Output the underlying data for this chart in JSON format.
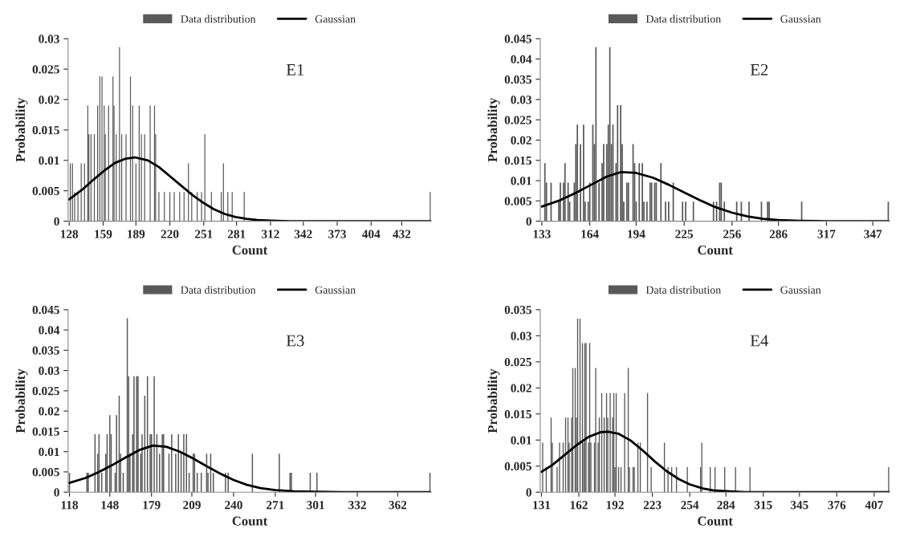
{
  "chart_data": [
    {
      "type": "bar",
      "xlabel": "Count",
      "ylabel": "Probability",
      "annotations": [
        "E1"
      ],
      "legend": "top",
      "xlim": [
        127,
        459
      ],
      "xticks": [
        128,
        159,
        189,
        220,
        251,
        281,
        312,
        342,
        373,
        404,
        432
      ],
      "ylim": [
        0,
        0.03
      ],
      "yticks": [
        0,
        0.005,
        0.01,
        0.015,
        0.02,
        0.025,
        0.03
      ],
      "series": [
        {
          "name": "Data distribution",
          "type": "bar",
          "color": "#595959",
          "x": [
            129,
            131,
            133,
            136,
            139,
            142,
            145,
            146,
            148,
            151,
            154,
            156,
            158,
            160,
            161,
            164,
            168,
            169,
            171,
            174,
            176,
            180,
            184,
            186,
            189,
            192,
            194,
            197,
            202,
            206,
            207,
            210,
            215,
            220,
            224,
            229,
            233,
            237,
            240,
            245,
            249,
            252,
            258,
            267,
            269,
            273,
            277,
            288,
            458
          ],
          "values": [
            0.0095,
            0.0095,
            0.0048,
            0.0048,
            0.0095,
            0.0095,
            0.019,
            0.0143,
            0.0143,
            0.0143,
            0.019,
            0.0238,
            0.0238,
            0.019,
            0.0143,
            0.019,
            0.0238,
            0.019,
            0.0143,
            0.0286,
            0.0143,
            0.0143,
            0.0238,
            0.019,
            0.0095,
            0.019,
            0.0143,
            0.0143,
            0.019,
            0.019,
            0.0143,
            0.0048,
            0.0048,
            0.0048,
            0.0048,
            0.0048,
            0.0048,
            0.0095,
            0.0048,
            0.0048,
            0.0048,
            0.0143,
            0.0048,
            0.0048,
            0.0095,
            0.0048,
            0.0048,
            0.0048,
            0.0048
          ]
        },
        {
          "name": "Gaussian",
          "type": "line",
          "color": "#000000",
          "x": [
            128,
            140,
            150,
            160,
            170,
            180,
            188,
            200,
            210,
            220,
            230,
            240,
            250,
            260,
            270,
            280,
            290,
            300,
            312,
            330,
            458
          ],
          "values": [
            0.0036,
            0.0052,
            0.0068,
            0.0083,
            0.0096,
            0.0103,
            0.0105,
            0.01,
            0.0089,
            0.0074,
            0.0059,
            0.0044,
            0.0031,
            0.002,
            0.0012,
            0.0007,
            0.0004,
            0.0002,
            0.0001,
            0,
            0
          ]
        }
      ]
    },
    {
      "type": "bar",
      "xlabel": "Count",
      "ylabel": "Probability",
      "annotations": [
        "E2"
      ],
      "legend": "top",
      "xlim": [
        132,
        358
      ],
      "xticks": [
        133,
        164,
        194,
        225,
        256,
        286,
        317,
        347
      ],
      "ylim": [
        0,
        0.045
      ],
      "yticks": [
        0,
        0.005,
        0.01,
        0.015,
        0.02,
        0.025,
        0.03,
        0.035,
        0.04,
        0.045
      ],
      "series": [
        {
          "name": "Data distribution",
          "type": "bar",
          "color": "#595959",
          "x": [
            135,
            136,
            139,
            144,
            145,
            147,
            148,
            150,
            151,
            154,
            155,
            156,
            158,
            160,
            161,
            163,
            164,
            166,
            167,
            168,
            170,
            172,
            173,
            175,
            176,
            177,
            178,
            179,
            181,
            182,
            184,
            185,
            186,
            188,
            189,
            192,
            193,
            194,
            196,
            198,
            199,
            201,
            203,
            204,
            206,
            207,
            210,
            213,
            215,
            218,
            224,
            226,
            231,
            244,
            246,
            248,
            249,
            251,
            259,
            262,
            267,
            275,
            279,
            280,
            301,
            357
          ],
          "values": [
            0.0143,
            0.0095,
            0.0095,
            0.0048,
            0.0095,
            0.0095,
            0.0143,
            0.0095,
            0.0048,
            0.0095,
            0.019,
            0.0238,
            0.019,
            0.0238,
            0.0048,
            0.0048,
            0.0095,
            0.0238,
            0.019,
            0.0429,
            0.0095,
            0.0143,
            0.019,
            0.019,
            0.0238,
            0.0429,
            0.019,
            0.0238,
            0.0143,
            0.0286,
            0.0286,
            0.019,
            0.0048,
            0.0095,
            0.0095,
            0.019,
            0.0143,
            0.0048,
            0.0143,
            0.0143,
            0.0048,
            0.0048,
            0.0095,
            0.0095,
            0.0095,
            0.0095,
            0.0143,
            0.0048,
            0.0048,
            0.0095,
            0.0048,
            0.0048,
            0.0048,
            0.0048,
            0.0048,
            0.0095,
            0.0095,
            0.0048,
            0.0048,
            0.0048,
            0.0048,
            0.0048,
            0.0048,
            0.0048,
            0.0048,
            0.0048
          ]
        },
        {
          "name": "Gaussian",
          "type": "line",
          "color": "#000000",
          "x": [
            133,
            145,
            155,
            165,
            175,
            184,
            194,
            205,
            215,
            225,
            235,
            245,
            256,
            266,
            276,
            286,
            300,
            317,
            357
          ],
          "values": [
            0.0036,
            0.0052,
            0.007,
            0.009,
            0.011,
            0.0121,
            0.0119,
            0.0107,
            0.009,
            0.0071,
            0.0052,
            0.0035,
            0.0021,
            0.0012,
            0.0006,
            0.0003,
            0.0001,
            0,
            0
          ]
        }
      ]
    },
    {
      "type": "bar",
      "xlabel": "Count",
      "ylabel": "Probability",
      "annotations": [
        "E3"
      ],
      "legend": "top",
      "xlim": [
        117,
        387
      ],
      "xticks": [
        118,
        148,
        179,
        209,
        240,
        271,
        301,
        332,
        362
      ],
      "ylim": [
        0,
        0.045
      ],
      "yticks": [
        0,
        0.005,
        0.01,
        0.015,
        0.02,
        0.025,
        0.03,
        0.035,
        0.04,
        0.045
      ],
      "series": [
        {
          "name": "Data distribution",
          "type": "bar",
          "color": "#595959",
          "x": [
            118,
            131,
            132,
            137,
            139,
            140,
            142,
            145,
            146,
            148,
            149,
            152,
            153,
            155,
            156,
            158,
            161,
            162,
            163,
            165,
            166,
            168,
            169,
            171,
            172,
            174,
            176,
            178,
            179,
            181,
            183,
            185,
            187,
            188,
            192,
            194,
            197,
            199,
            201,
            203,
            205,
            207,
            210,
            211,
            213,
            216,
            220,
            221,
            223,
            225,
            234,
            236,
            254,
            274,
            282,
            283,
            297,
            302,
            386
          ],
          "values": [
            0.0048,
            0.0048,
            0.0048,
            0.0143,
            0.0095,
            0.0143,
            0.0048,
            0.0095,
            0.0143,
            0.019,
            0.0143,
            0.0048,
            0.019,
            0.0238,
            0.0095,
            0.0048,
            0.0429,
            0.0286,
            0.0095,
            0.0143,
            0.0286,
            0.0286,
            0.0286,
            0.0095,
            0.0143,
            0.0238,
            0.0286,
            0.0143,
            0.0143,
            0.0286,
            0.0143,
            0.0095,
            0.0143,
            0.0143,
            0.0095,
            0.0143,
            0.0095,
            0.0143,
            0.0095,
            0.0143,
            0.0143,
            0.0048,
            0.0095,
            0.0095,
            0.0048,
            0.0048,
            0.0095,
            0.0048,
            0.0095,
            0.0048,
            0.0048,
            0.0048,
            0.0095,
            0.0095,
            0.0048,
            0.0048,
            0.0048,
            0.0048,
            0.0048
          ]
        },
        {
          "name": "Gaussian",
          "type": "line",
          "color": "#000000",
          "x": [
            118,
            130,
            140,
            150,
            160,
            170,
            180,
            190,
            200,
            210,
            220,
            230,
            240,
            250,
            260,
            271,
            285,
            301,
            320,
            386
          ],
          "values": [
            0.0023,
            0.0035,
            0.005,
            0.0067,
            0.0086,
            0.0104,
            0.0115,
            0.0112,
            0.01,
            0.0083,
            0.0064,
            0.0046,
            0.003,
            0.0018,
            0.001,
            0.0005,
            0.0002,
            0.0001,
            0,
            0
          ]
        }
      ]
    },
    {
      "type": "bar",
      "xlabel": "Count",
      "ylabel": "Probability",
      "annotations": [
        "E4"
      ],
      "legend": "top",
      "xlim": [
        130,
        420
      ],
      "xticks": [
        131,
        162,
        192,
        223,
        254,
        284,
        315,
        345,
        376,
        407
      ],
      "ylim": [
        0,
        0.035
      ],
      "yticks": [
        0,
        0.005,
        0.01,
        0.015,
        0.02,
        0.025,
        0.03,
        0.035
      ],
      "series": [
        {
          "name": "Data distribution",
          "type": "bar",
          "color": "#595959",
          "x": [
            132,
            135,
            139,
            140,
            144,
            146,
            149,
            151,
            153,
            154,
            156,
            157,
            159,
            160,
            161,
            163,
            165,
            166,
            167,
            168,
            170,
            171,
            172,
            175,
            176,
            178,
            179,
            181,
            183,
            185,
            186,
            188,
            190,
            191,
            192,
            193,
            195,
            197,
            200,
            203,
            204,
            207,
            208,
            211,
            213,
            219,
            222,
            233,
            236,
            239,
            243,
            252,
            263,
            264,
            271,
            275,
            283,
            292,
            304,
            419
          ],
          "values": [
            0.0095,
            0.0048,
            0.0143,
            0.0095,
            0.0048,
            0.0095,
            0.0095,
            0.0143,
            0.0143,
            0.0095,
            0.0143,
            0.0238,
            0.0238,
            0.0143,
            0.0333,
            0.0333,
            0.0286,
            0.0095,
            0.0286,
            0.0286,
            0.0095,
            0.0286,
            0.0095,
            0.0095,
            0.0238,
            0.0095,
            0.0143,
            0.019,
            0.0143,
            0.019,
            0.0143,
            0.019,
            0.0143,
            0.019,
            0.0048,
            0.019,
            0.0048,
            0.0048,
            0.019,
            0.0238,
            0.0048,
            0.0048,
            0.0048,
            0.0095,
            0.0095,
            0.019,
            0.0048,
            0.0095,
            0.0048,
            0.0048,
            0.0048,
            0.0048,
            0.0048,
            0.0095,
            0.0048,
            0.0048,
            0.0048,
            0.0048,
            0.0048,
            0.0048
          ]
        },
        {
          "name": "Gaussian",
          "type": "line",
          "color": "#000000",
          "x": [
            131,
            140,
            150,
            160,
            170,
            180,
            186,
            195,
            205,
            215,
            225,
            235,
            245,
            254,
            265,
            275,
            284,
            300,
            419
          ],
          "values": [
            0.0039,
            0.0052,
            0.0071,
            0.009,
            0.0106,
            0.0115,
            0.0116,
            0.0112,
            0.0099,
            0.008,
            0.0059,
            0.004,
            0.0025,
            0.0015,
            0.0007,
            0.0003,
            0.0002,
            0,
            0
          ]
        }
      ]
    }
  ]
}
